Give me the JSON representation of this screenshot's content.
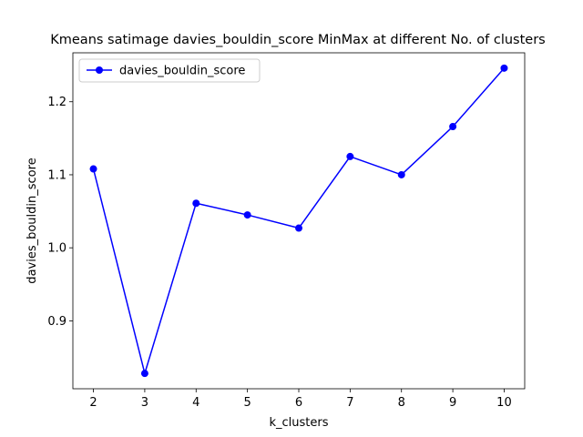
{
  "chart_data": {
    "type": "line",
    "title": "Kmeans satimage davies_bouldin_score MinMax at different No. of clusters",
    "xlabel": "k_clusters",
    "ylabel": "davies_bouldin_score",
    "x": [
      2,
      3,
      4,
      5,
      6,
      7,
      8,
      9,
      10
    ],
    "series": [
      {
        "name": "davies_bouldin_score",
        "color": "#0000ff",
        "marker": "circle",
        "values": [
          1.108,
          0.828,
          1.061,
          1.045,
          1.027,
          1.125,
          1.1,
          1.166,
          1.246
        ]
      }
    ],
    "xlim": [
      1.6,
      10.4
    ],
    "ylim": [
      0.807,
      1.267
    ],
    "xticks": [
      2,
      3,
      4,
      5,
      6,
      7,
      8,
      9,
      10
    ],
    "yticks": [
      0.9,
      1.0,
      1.1,
      1.2
    ],
    "ytick_labels": [
      "0.9",
      "1.0",
      "1.1",
      "1.2"
    ],
    "grid": false,
    "legend_position": "top-left"
  }
}
